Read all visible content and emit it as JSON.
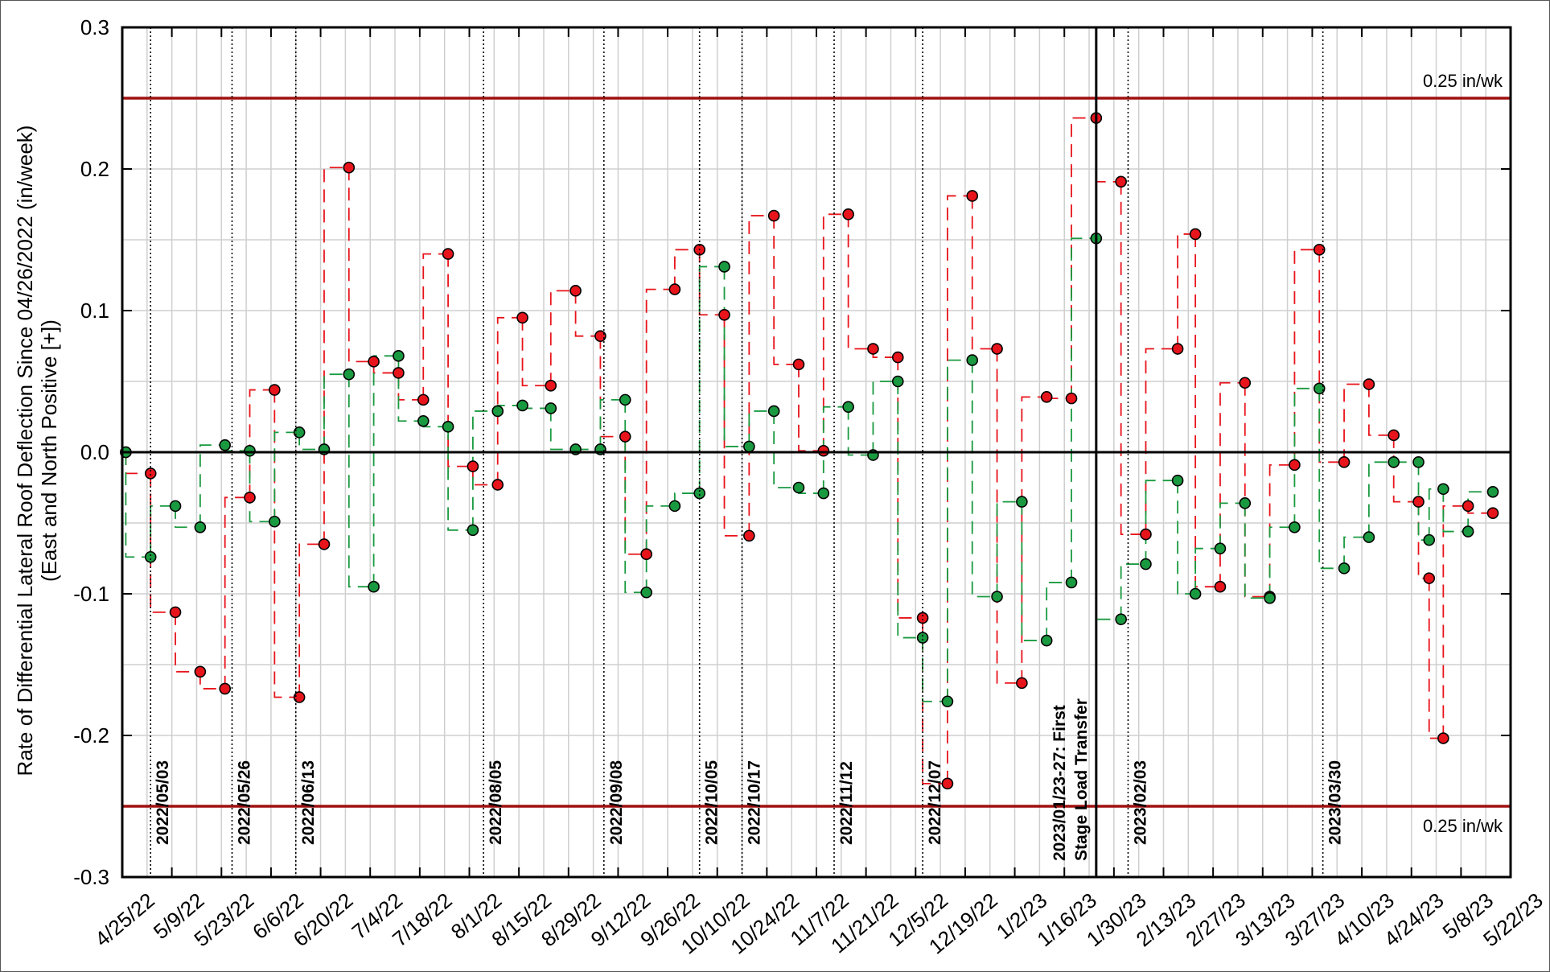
{
  "chart_data": {
    "type": "step",
    "ylabel": [
      "Rate of Differential Lateral Roof Deflection Since 04/26/2022 (in/week)",
      "(East and North Positive [+])"
    ],
    "x": [
      "2022-04-26",
      "2022-05-03",
      "2022-05-10",
      "2022-05-17",
      "2022-05-24",
      "2022-05-31",
      "2022-06-07",
      "2022-06-14",
      "2022-06-21",
      "2022-06-28",
      "2022-07-05",
      "2022-07-12",
      "2022-07-19",
      "2022-07-26",
      "2022-08-02",
      "2022-08-09",
      "2022-08-16",
      "2022-08-24",
      "2022-08-31",
      "2022-09-07",
      "2022-09-14",
      "2022-09-20",
      "2022-09-28",
      "2022-10-05",
      "2022-10-12",
      "2022-10-19",
      "2022-10-26",
      "2022-11-02",
      "2022-11-09",
      "2022-11-16",
      "2022-11-23",
      "2022-11-30",
      "2022-12-07",
      "2022-12-14",
      "2022-12-21",
      "2022-12-28",
      "2023-01-04",
      "2023-01-11",
      "2023-01-18",
      "2023-01-25",
      "2023-02-01",
      "2023-02-08",
      "2023-02-17",
      "2023-02-22",
      "2023-03-01",
      "2023-03-08",
      "2023-03-15",
      "2023-03-22",
      "2023-03-29",
      "2023-04-05",
      "2023-04-12",
      "2023-04-19",
      "2023-04-26",
      "2023-04-29",
      "2023-05-03",
      "2023-05-10",
      "2023-05-17"
    ],
    "series": [
      {
        "color": "#e8141b",
        "values": [
          0,
          -0.015,
          -0.113,
          -0.155,
          -0.167,
          -0.032,
          0.044,
          -0.173,
          -0.065,
          0.201,
          0.064,
          0.056,
          0.037,
          0.14,
          -0.01,
          -0.023,
          0.095,
          0.047,
          0.114,
          0.082,
          0.011,
          -0.072,
          0.115,
          0.143,
          0.097,
          -0.059,
          0.167,
          0.062,
          0.001,
          0.168,
          0.073,
          0.067,
          -0.117,
          -0.234,
          0.181,
          0.073,
          -0.163,
          0.039,
          0.038,
          0.236,
          0.191,
          -0.058,
          0.073,
          0.154,
          -0.095,
          0.049,
          -0.102,
          -0.009,
          0.143,
          -0.007,
          0.048,
          0.012,
          -0.035,
          -0.089,
          -0.202,
          -0.038,
          -0.043
        ]
      },
      {
        "color": "#1a9a40",
        "values": [
          0,
          -0.074,
          -0.038,
          -0.053,
          0.005,
          0.001,
          -0.049,
          0.014,
          0.002,
          0.055,
          -0.095,
          0.068,
          0.022,
          0.018,
          -0.055,
          0.029,
          0.033,
          0.031,
          0.002,
          0.002,
          0.037,
          -0.099,
          -0.038,
          -0.029,
          0.131,
          0.004,
          0.029,
          -0.025,
          -0.029,
          0.032,
          -0.002,
          0.05,
          -0.131,
          -0.176,
          0.065,
          -0.102,
          -0.035,
          -0.133,
          -0.092,
          0.151,
          -0.118,
          -0.079,
          -0.02,
          -0.1,
          -0.068,
          -0.036,
          -0.103,
          -0.053,
          0.045,
          -0.082,
          -0.06,
          -0.007,
          -0.007,
          -0.062,
          -0.026,
          -0.056,
          -0.028
        ]
      }
    ],
    "xlim": [
      "2022-04-25",
      "2023-05-22"
    ],
    "xticks": [
      {
        "value": "2022-04-25",
        "label": "4/25/22"
      },
      {
        "value": "2022-05-09",
        "label": "5/9/22"
      },
      {
        "value": "2022-05-23",
        "label": "5/23/22"
      },
      {
        "value": "2022-06-06",
        "label": "6/6/22"
      },
      {
        "value": "2022-06-20",
        "label": "6/20/22"
      },
      {
        "value": "2022-07-04",
        "label": "7/4/22"
      },
      {
        "value": "2022-07-18",
        "label": "7/18/22"
      },
      {
        "value": "2022-08-01",
        "label": "8/1/22"
      },
      {
        "value": "2022-08-15",
        "label": "8/15/22"
      },
      {
        "value": "2022-08-29",
        "label": "8/29/22"
      },
      {
        "value": "2022-09-12",
        "label": "9/12/22"
      },
      {
        "value": "2022-09-26",
        "label": "9/26/22"
      },
      {
        "value": "2022-10-10",
        "label": "10/10/22"
      },
      {
        "value": "2022-10-24",
        "label": "10/24/22"
      },
      {
        "value": "2022-11-07",
        "label": "11/7/22"
      },
      {
        "value": "2022-11-21",
        "label": "11/21/22"
      },
      {
        "value": "2022-12-05",
        "label": "12/5/22"
      },
      {
        "value": "2022-12-19",
        "label": "12/19/22"
      },
      {
        "value": "2023-01-02",
        "label": "1/2/23"
      },
      {
        "value": "2023-01-16",
        "label": "1/16/23"
      },
      {
        "value": "2023-01-30",
        "label": "1/30/23"
      },
      {
        "value": "2023-02-13",
        "label": "2/13/23"
      },
      {
        "value": "2023-02-27",
        "label": "2/27/23"
      },
      {
        "value": "2023-03-13",
        "label": "3/13/23"
      },
      {
        "value": "2023-03-27",
        "label": "3/27/23"
      },
      {
        "value": "2023-04-10",
        "label": "4/10/23"
      },
      {
        "value": "2023-04-24",
        "label": "4/24/23"
      },
      {
        "value": "2023-05-08",
        "label": "5/8/23"
      },
      {
        "value": "2023-05-22",
        "label": "5/22/23"
      }
    ],
    "xminor": [
      "2022-05-02",
      "2022-05-16",
      "2022-05-30",
      "2022-06-13",
      "2022-06-27",
      "2022-07-11",
      "2022-07-25",
      "2022-08-08",
      "2022-08-22",
      "2022-09-05",
      "2022-09-19",
      "2022-10-03",
      "2022-10-17",
      "2022-10-31",
      "2022-11-14",
      "2022-11-28",
      "2022-12-12",
      "2022-12-26",
      "2023-01-09",
      "2023-01-23",
      "2023-02-06",
      "2023-02-20",
      "2023-03-06",
      "2023-03-20",
      "2023-04-03",
      "2023-04-17",
      "2023-05-01",
      "2023-05-15"
    ],
    "ylim": [
      -0.3,
      0.3
    ],
    "yticks": [
      -0.3,
      -0.2,
      -0.1,
      {
        "value": 0,
        "label": "0.0"
      },
      0.1,
      0.2,
      0.3
    ],
    "yminor": [
      -0.25,
      -0.15,
      -0.05,
      0.05,
      0.15,
      0.25
    ],
    "grid": true,
    "limit_color": "#a01010",
    "limits": [
      {
        "value": 0.25,
        "label": "0.25 in/wk"
      },
      {
        "value": -0.25,
        "label": "0.25 in/wk"
      }
    ],
    "events": [
      {
        "x": "2022-05-03",
        "label": [
          "2022/05/03"
        ]
      },
      {
        "x": "2022-05-26",
        "label": [
          "2022/05/26"
        ]
      },
      {
        "x": "2022-06-13",
        "label": [
          "2022/06/13"
        ]
      },
      {
        "x": "2022-08-05",
        "label": [
          "2022/08/05"
        ]
      },
      {
        "x": "2022-09-08",
        "label": [
          "2022/09/08"
        ]
      },
      {
        "x": "2022-10-05",
        "label": [
          "2022/10/05"
        ]
      },
      {
        "x": "2022-10-17",
        "label": [
          "2022/10/17"
        ]
      },
      {
        "x": "2022-11-12",
        "label": [
          "2022/11/12"
        ]
      },
      {
        "x": "2022-12-07",
        "label": [
          "2022/12/07"
        ]
      },
      {
        "x": "2023-01-25",
        "label": [
          "2023/01/23-27: First",
          "Stage Load Transfer"
        ],
        "style": "solid"
      },
      {
        "x": "2023-02-03",
        "label": [
          "2023/02/03"
        ]
      },
      {
        "x": "2023-03-30",
        "label": [
          "2023/03/30"
        ]
      }
    ]
  }
}
